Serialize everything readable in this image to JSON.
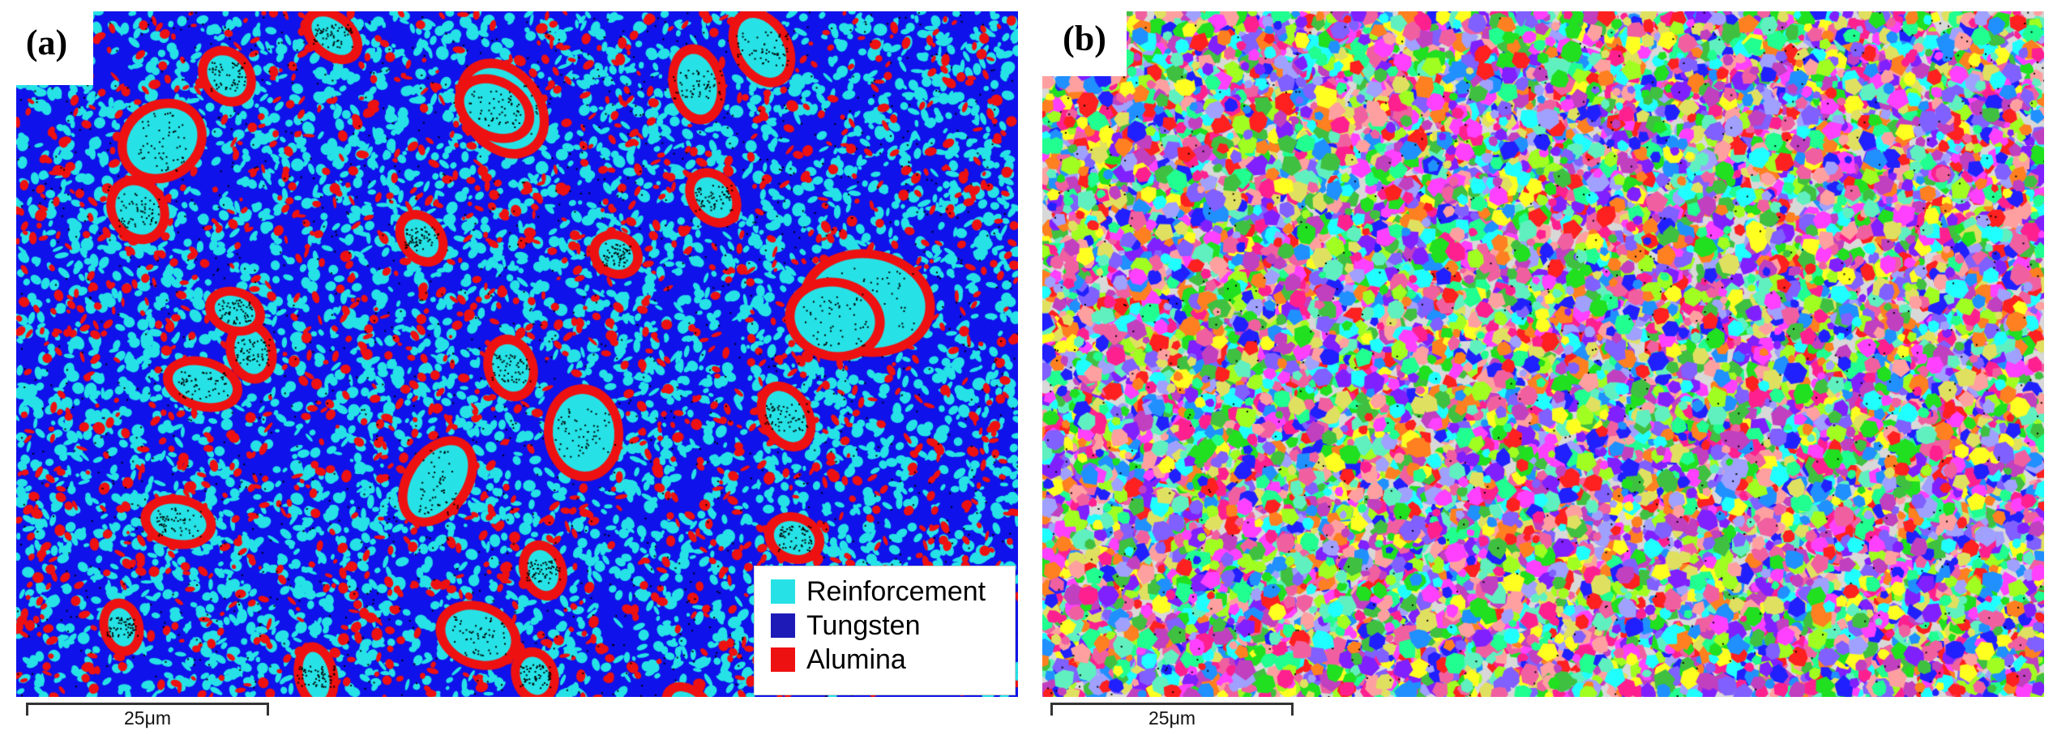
{
  "panel_a": {
    "label": "(a)",
    "legend": [
      {
        "label": "Reinforcement",
        "color": "#26e2e6"
      },
      {
        "label": "Tungsten",
        "color": "#1d1ab8"
      },
      {
        "label": "Alumina",
        "color": "#ee1111"
      }
    ],
    "scalebar_label": "25μm",
    "colors": {
      "matrix": "#0f12ea",
      "reinforcement": "#26e2e6",
      "alumina": "#ee1111",
      "pores": "#000000"
    }
  },
  "panel_b": {
    "label": "(b)",
    "scalebar_label": "25μm"
  }
}
